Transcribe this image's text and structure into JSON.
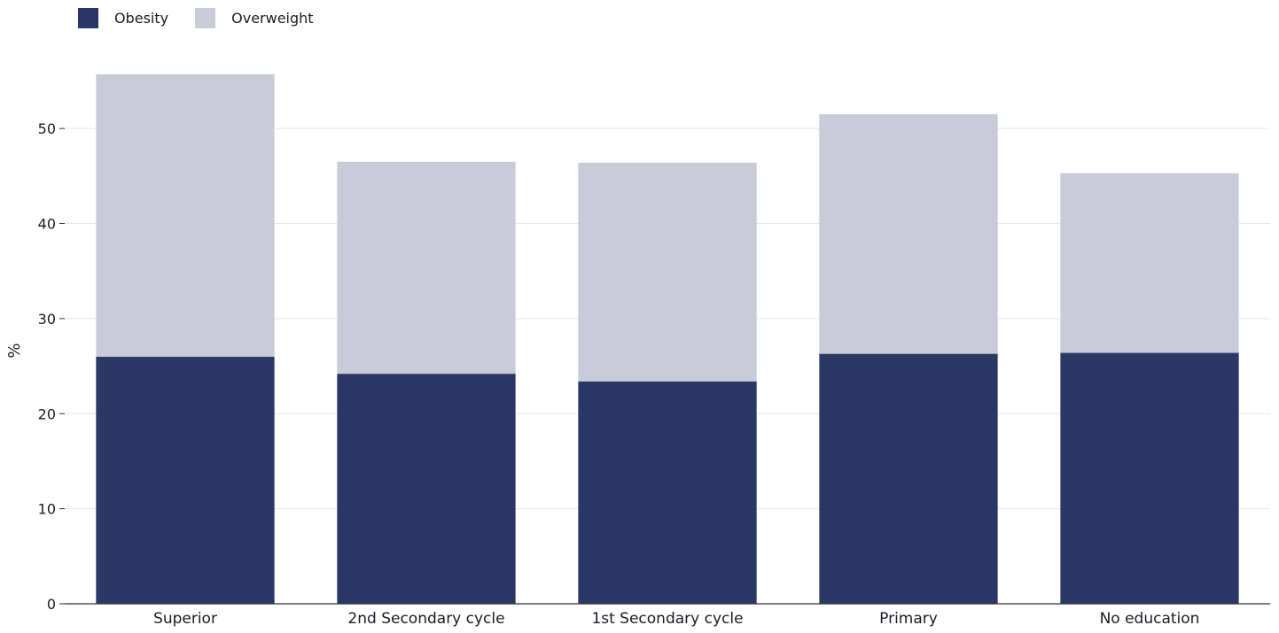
{
  "legend": [
    {
      "label": "Obesity",
      "color": "#2b3764"
    },
    {
      "label": "Overweight",
      "color": "#c9ccd8"
    }
  ],
  "chart_data": {
    "type": "bar",
    "stacked": true,
    "categories": [
      "Superior",
      "2nd Secondary cycle",
      "1st Secondary cycle",
      "Primary",
      "No education"
    ],
    "series": [
      {
        "name": "Obesity",
        "color": "#2b3764",
        "values": [
          26.0,
          24.2,
          23.4,
          26.3,
          26.4
        ]
      },
      {
        "name": "Overweight",
        "color": "#c9ccd8",
        "values": [
          29.7,
          22.3,
          23.0,
          25.2,
          18.9
        ]
      }
    ],
    "xlabel": "",
    "ylabel": "%",
    "ylim": [
      0,
      57
    ],
    "yticks": [
      0,
      10,
      20,
      30,
      40,
      50
    ],
    "grid": true,
    "legend_position": "top-left"
  }
}
